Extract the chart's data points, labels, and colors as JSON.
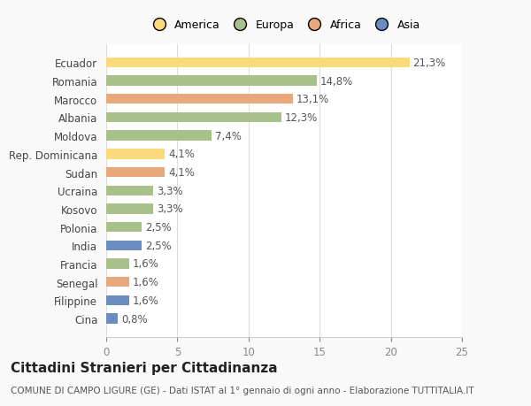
{
  "categories": [
    "Ecuador",
    "Romania",
    "Marocco",
    "Albania",
    "Moldova",
    "Rep. Dominicana",
    "Sudan",
    "Ucraina",
    "Kosovo",
    "Polonia",
    "India",
    "Francia",
    "Senegal",
    "Filippine",
    "Cina"
  ],
  "values": [
    21.3,
    14.8,
    13.1,
    12.3,
    7.4,
    4.1,
    4.1,
    3.3,
    3.3,
    2.5,
    2.5,
    1.6,
    1.6,
    1.6,
    0.8
  ],
  "labels": [
    "21,3%",
    "14,8%",
    "13,1%",
    "12,3%",
    "7,4%",
    "4,1%",
    "4,1%",
    "3,3%",
    "3,3%",
    "2,5%",
    "2,5%",
    "1,6%",
    "1,6%",
    "1,6%",
    "0,8%"
  ],
  "colors": [
    "#FADA7A",
    "#A8C08A",
    "#E8A87C",
    "#A8C08A",
    "#A8C08A",
    "#FADA7A",
    "#E8A87C",
    "#A8C08A",
    "#A8C08A",
    "#A8C08A",
    "#6B8CBE",
    "#A8C08A",
    "#E8A87C",
    "#6B8CBE",
    "#6B8CBE"
  ],
  "legend_labels": [
    "America",
    "Europa",
    "Africa",
    "Asia"
  ],
  "legend_colors": [
    "#FADA7A",
    "#A8C08A",
    "#E8A87C",
    "#6B8CBE"
  ],
  "title": "Cittadini Stranieri per Cittadinanza",
  "subtitle": "COMUNE DI CAMPO LIGURE (GE) - Dati ISTAT al 1° gennaio di ogni anno - Elaborazione TUTTITALIA.IT",
  "xlim": [
    0,
    25
  ],
  "xticks": [
    0,
    5,
    10,
    15,
    20,
    25
  ],
  "background_color": "#f9f9f9",
  "bar_background": "#ffffff",
  "bar_height": 0.55,
  "label_fontsize": 8.5,
  "ytick_fontsize": 8.5,
  "xtick_fontsize": 8.5,
  "title_fontsize": 11,
  "subtitle_fontsize": 7.5
}
